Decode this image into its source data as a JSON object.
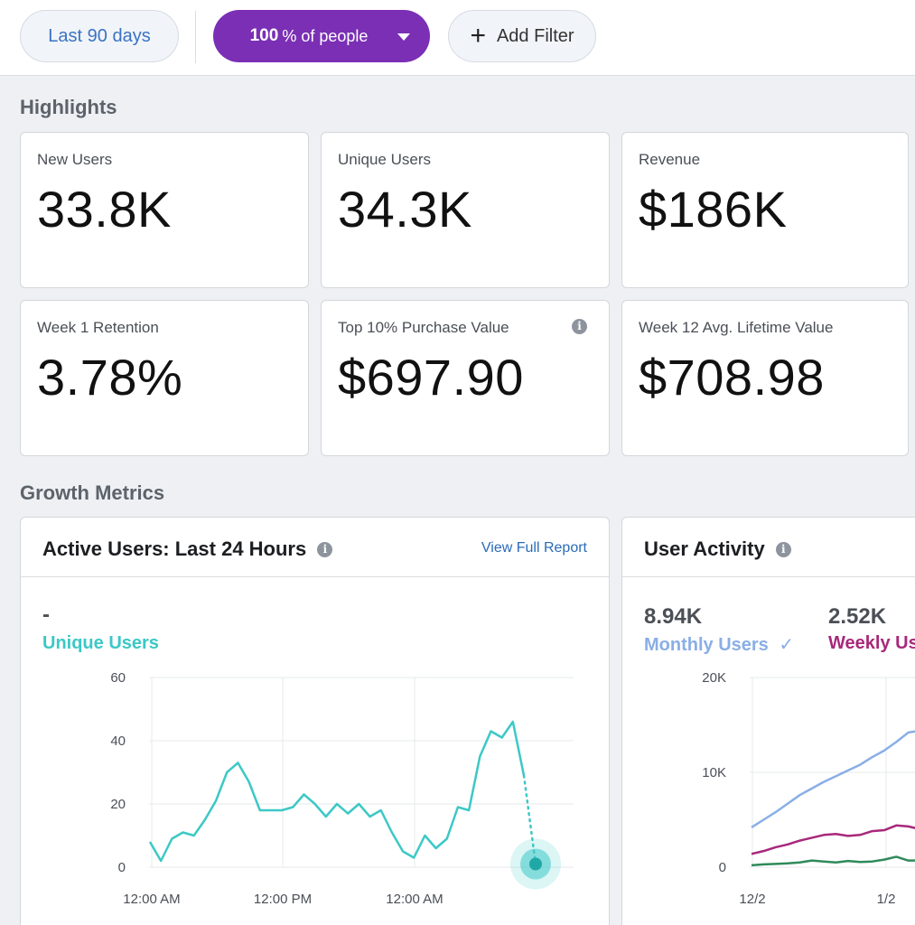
{
  "filters": {
    "date_range": "Last 90 days",
    "people_value": "100",
    "people_suffix": "% of people",
    "add_filter": "Add Filter"
  },
  "highlights": {
    "title": "Highlights",
    "cards": [
      {
        "label": "New Users",
        "value": "33.8K"
      },
      {
        "label": "Unique Users",
        "value": "34.3K"
      },
      {
        "label": "Revenue",
        "value": "$186K"
      },
      {
        "label": "Week 1 Retention",
        "value": "3.78%"
      },
      {
        "label": "Top 10% Purchase Value",
        "value": "$697.90"
      },
      {
        "label": "Week 12 Avg. Lifetime Value",
        "value": "$708.98"
      }
    ]
  },
  "growth": {
    "title": "Growth Metrics",
    "active_users": {
      "title": "Active Users: Last 24 Hours",
      "link": "View Full Report",
      "current_value": "-",
      "series_label": "Unique Users"
    },
    "user_activity": {
      "title": "User Activity",
      "monthly_value": "8.94K",
      "monthly_label": "Monthly Users",
      "weekly_value": "2.52K",
      "weekly_label": "Weekly Us"
    }
  },
  "colors": {
    "accent_purple": "#7b2fb5",
    "teal": "#3cc8c6",
    "monthly_blue": "#8aaee6",
    "weekly_magenta": "#a8287a",
    "daily_green": "#2f8a5a"
  },
  "chart_data": [
    {
      "type": "line",
      "title": "Active Users: Last 24 Hours",
      "ylim": [
        0,
        60
      ],
      "yticks": [
        "0",
        "20",
        "40",
        "60"
      ],
      "xticks": [
        "12:00 AM",
        "12:00 PM",
        "12:00 AM"
      ],
      "series": [
        {
          "name": "Unique Users",
          "values": [
            8,
            2,
            9,
            11,
            10,
            15,
            21,
            30,
            33,
            27,
            18,
            18,
            18,
            19,
            23,
            20,
            16,
            20,
            17,
            20,
            16,
            18,
            11,
            5,
            3,
            10,
            6,
            9,
            19,
            18,
            35,
            43,
            41,
            46,
            29
          ],
          "projected_end": 1
        }
      ]
    },
    {
      "type": "line",
      "title": "User Activity",
      "ylim": [
        0,
        20000
      ],
      "yticks": [
        "0",
        "10K",
        "20K"
      ],
      "xticks": [
        "12/2",
        "1/2"
      ],
      "series": [
        {
          "name": "Monthly Users",
          "values": [
            4200,
            5000,
            5800,
            6700,
            7600,
            8300,
            9000,
            9600,
            10200,
            10800,
            11600,
            12300,
            13200,
            14200,
            14400
          ]
        },
        {
          "name": "Weekly Us",
          "values": [
            1400,
            1700,
            2100,
            2400,
            2800,
            3100,
            3400,
            3500,
            3300,
            3400,
            3800,
            3900,
            4400,
            4300,
            4000
          ]
        },
        {
          "name": "",
          "values": [
            200,
            300,
            350,
            400,
            500,
            700,
            600,
            500,
            650,
            550,
            600,
            800,
            1100,
            700,
            700
          ]
        }
      ]
    }
  ]
}
